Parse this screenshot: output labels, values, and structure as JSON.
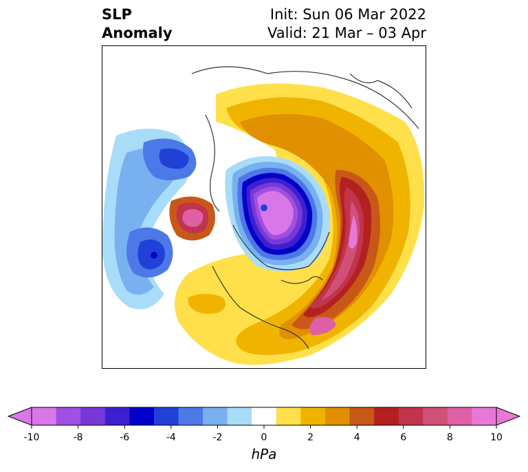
{
  "title": {
    "line1": "SLP",
    "line2": "Anomaly",
    "init": "Init: Sun 06 Mar 2022",
    "valid": "Valid: 21 Mar – 03 Apr"
  },
  "colorbar": {
    "unit": "hPa",
    "ticks": [
      "-10",
      "-8",
      "-6",
      "-4",
      "-2",
      "0",
      "2",
      "4",
      "6",
      "8",
      "10"
    ],
    "levels": [
      -10,
      -9,
      -8,
      -7,
      -6,
      -5,
      -4,
      -3,
      -2,
      -1,
      1,
      2,
      3,
      4,
      5,
      6,
      7,
      8,
      9,
      10
    ],
    "colors": [
      "#d977e8",
      "#a050e0",
      "#7838d8",
      "#3c20d0",
      "#0000c8",
      "#2040d8",
      "#4c78e8",
      "#78b0f0",
      "#a8dcf8",
      "#ffffff",
      "#ffe04a",
      "#f0b400",
      "#e09000",
      "#c85818",
      "#b42020",
      "#c0344c",
      "#d05078",
      "#e060a8",
      "#e878d8"
    ],
    "extend_min_color": "#d977e8",
    "extend_max_color": "#e878d8"
  }
}
